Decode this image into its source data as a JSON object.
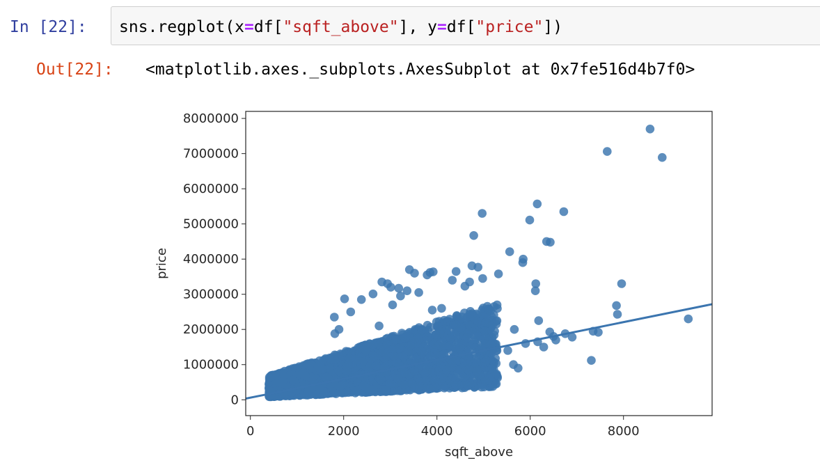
{
  "input_cell": {
    "prompt": "In [22]:",
    "code": {
      "fn": "sns.regplot(",
      "x_key": "x",
      "eq": "=",
      "x_obj": "df[",
      "x_col": "\"sqft_above\"",
      "mid": "], ",
      "y_key": "y",
      "y_obj": "df[",
      "y_col": "\"price\"",
      "end": "])"
    }
  },
  "output_cell": {
    "prompt": "Out[22]:",
    "text": "<matplotlib.axes._subplots.AxesSubplot at 0x7fe516d4b7f0>"
  },
  "chart_data": {
    "type": "scatter",
    "xlabel": "sqft_above",
    "ylabel": "price",
    "xlim": [
      -100,
      9900
    ],
    "ylim": [
      -450000,
      8200000
    ],
    "xticks": [
      0,
      2000,
      4000,
      6000,
      8000
    ],
    "yticks": [
      0,
      1000000,
      2000000,
      3000000,
      4000000,
      5000000,
      6000000,
      7000000,
      8000000
    ],
    "xtick_labels": [
      "0",
      "2000",
      "4000",
      "6000",
      "8000"
    ],
    "ytick_labels": [
      "0",
      "1000000",
      "2000000",
      "3000000",
      "4000000",
      "5000000",
      "6000000",
      "7000000",
      "8000000"
    ],
    "point_color": "#3b75af",
    "line_color": "#3b75af",
    "regression": {
      "slope": 268.5,
      "intercept": 60000,
      "x_range": [
        -100,
        9900
      ]
    },
    "points": {
      "x": [
        8570,
        7650,
        8830,
        4970,
        6150,
        6720,
        5990,
        4790,
        6350,
        6430,
        5560,
        5850,
        5840,
        3920,
        4880,
        4750,
        3410,
        3520,
        3790,
        3850,
        5320,
        6120,
        7960,
        4980,
        4330,
        4600,
        4700,
        6110,
        7350,
        7850,
        9390,
        7870,
        6180,
        5660,
        5100,
        5290,
        4760,
        6420,
        7460,
        6750,
        6500,
        6900,
        6160,
        5900,
        6550,
        7310,
        5640,
        5520,
        5740,
        6290,
        3180,
        3610,
        3010,
        2820,
        2380,
        2630,
        2020,
        1810,
        1900,
        4410,
        4100,
        3900,
        3220,
        2940,
        2760,
        1800,
        2150,
        3360,
        3050
      ],
      "y": [
        7700000,
        7060000,
        6890000,
        5300000,
        5570000,
        5350000,
        5110000,
        4670000,
        4500000,
        4480000,
        4210000,
        4000000,
        3900000,
        3640000,
        3770000,
        3810000,
        3700000,
        3600000,
        3550000,
        3620000,
        3580000,
        3300000,
        3300000,
        3450000,
        3400000,
        3230000,
        3350000,
        3100000,
        1950000,
        2680000,
        2300000,
        2430000,
        2250000,
        2000000,
        2550000,
        2700000,
        2400000,
        1930000,
        1920000,
        1880000,
        1800000,
        1780000,
        1650000,
        1600000,
        1700000,
        1120000,
        1000000,
        1400000,
        900000,
        1500000,
        3170000,
        3050000,
        3200000,
        3350000,
        2850000,
        3010000,
        2870000,
        1880000,
        2000000,
        3650000,
        2600000,
        2550000,
        2950000,
        3300000,
        2100000,
        2350000,
        2500000,
        3100000,
        2700000
      ]
    },
    "dense_region": {
      "description_free": true,
      "x_min": 400,
      "x_max": 5300,
      "y_low_slope": 60,
      "y_low_intercept": 60000,
      "y_high_slope": 430,
      "y_high_intercept": 500000
    }
  }
}
